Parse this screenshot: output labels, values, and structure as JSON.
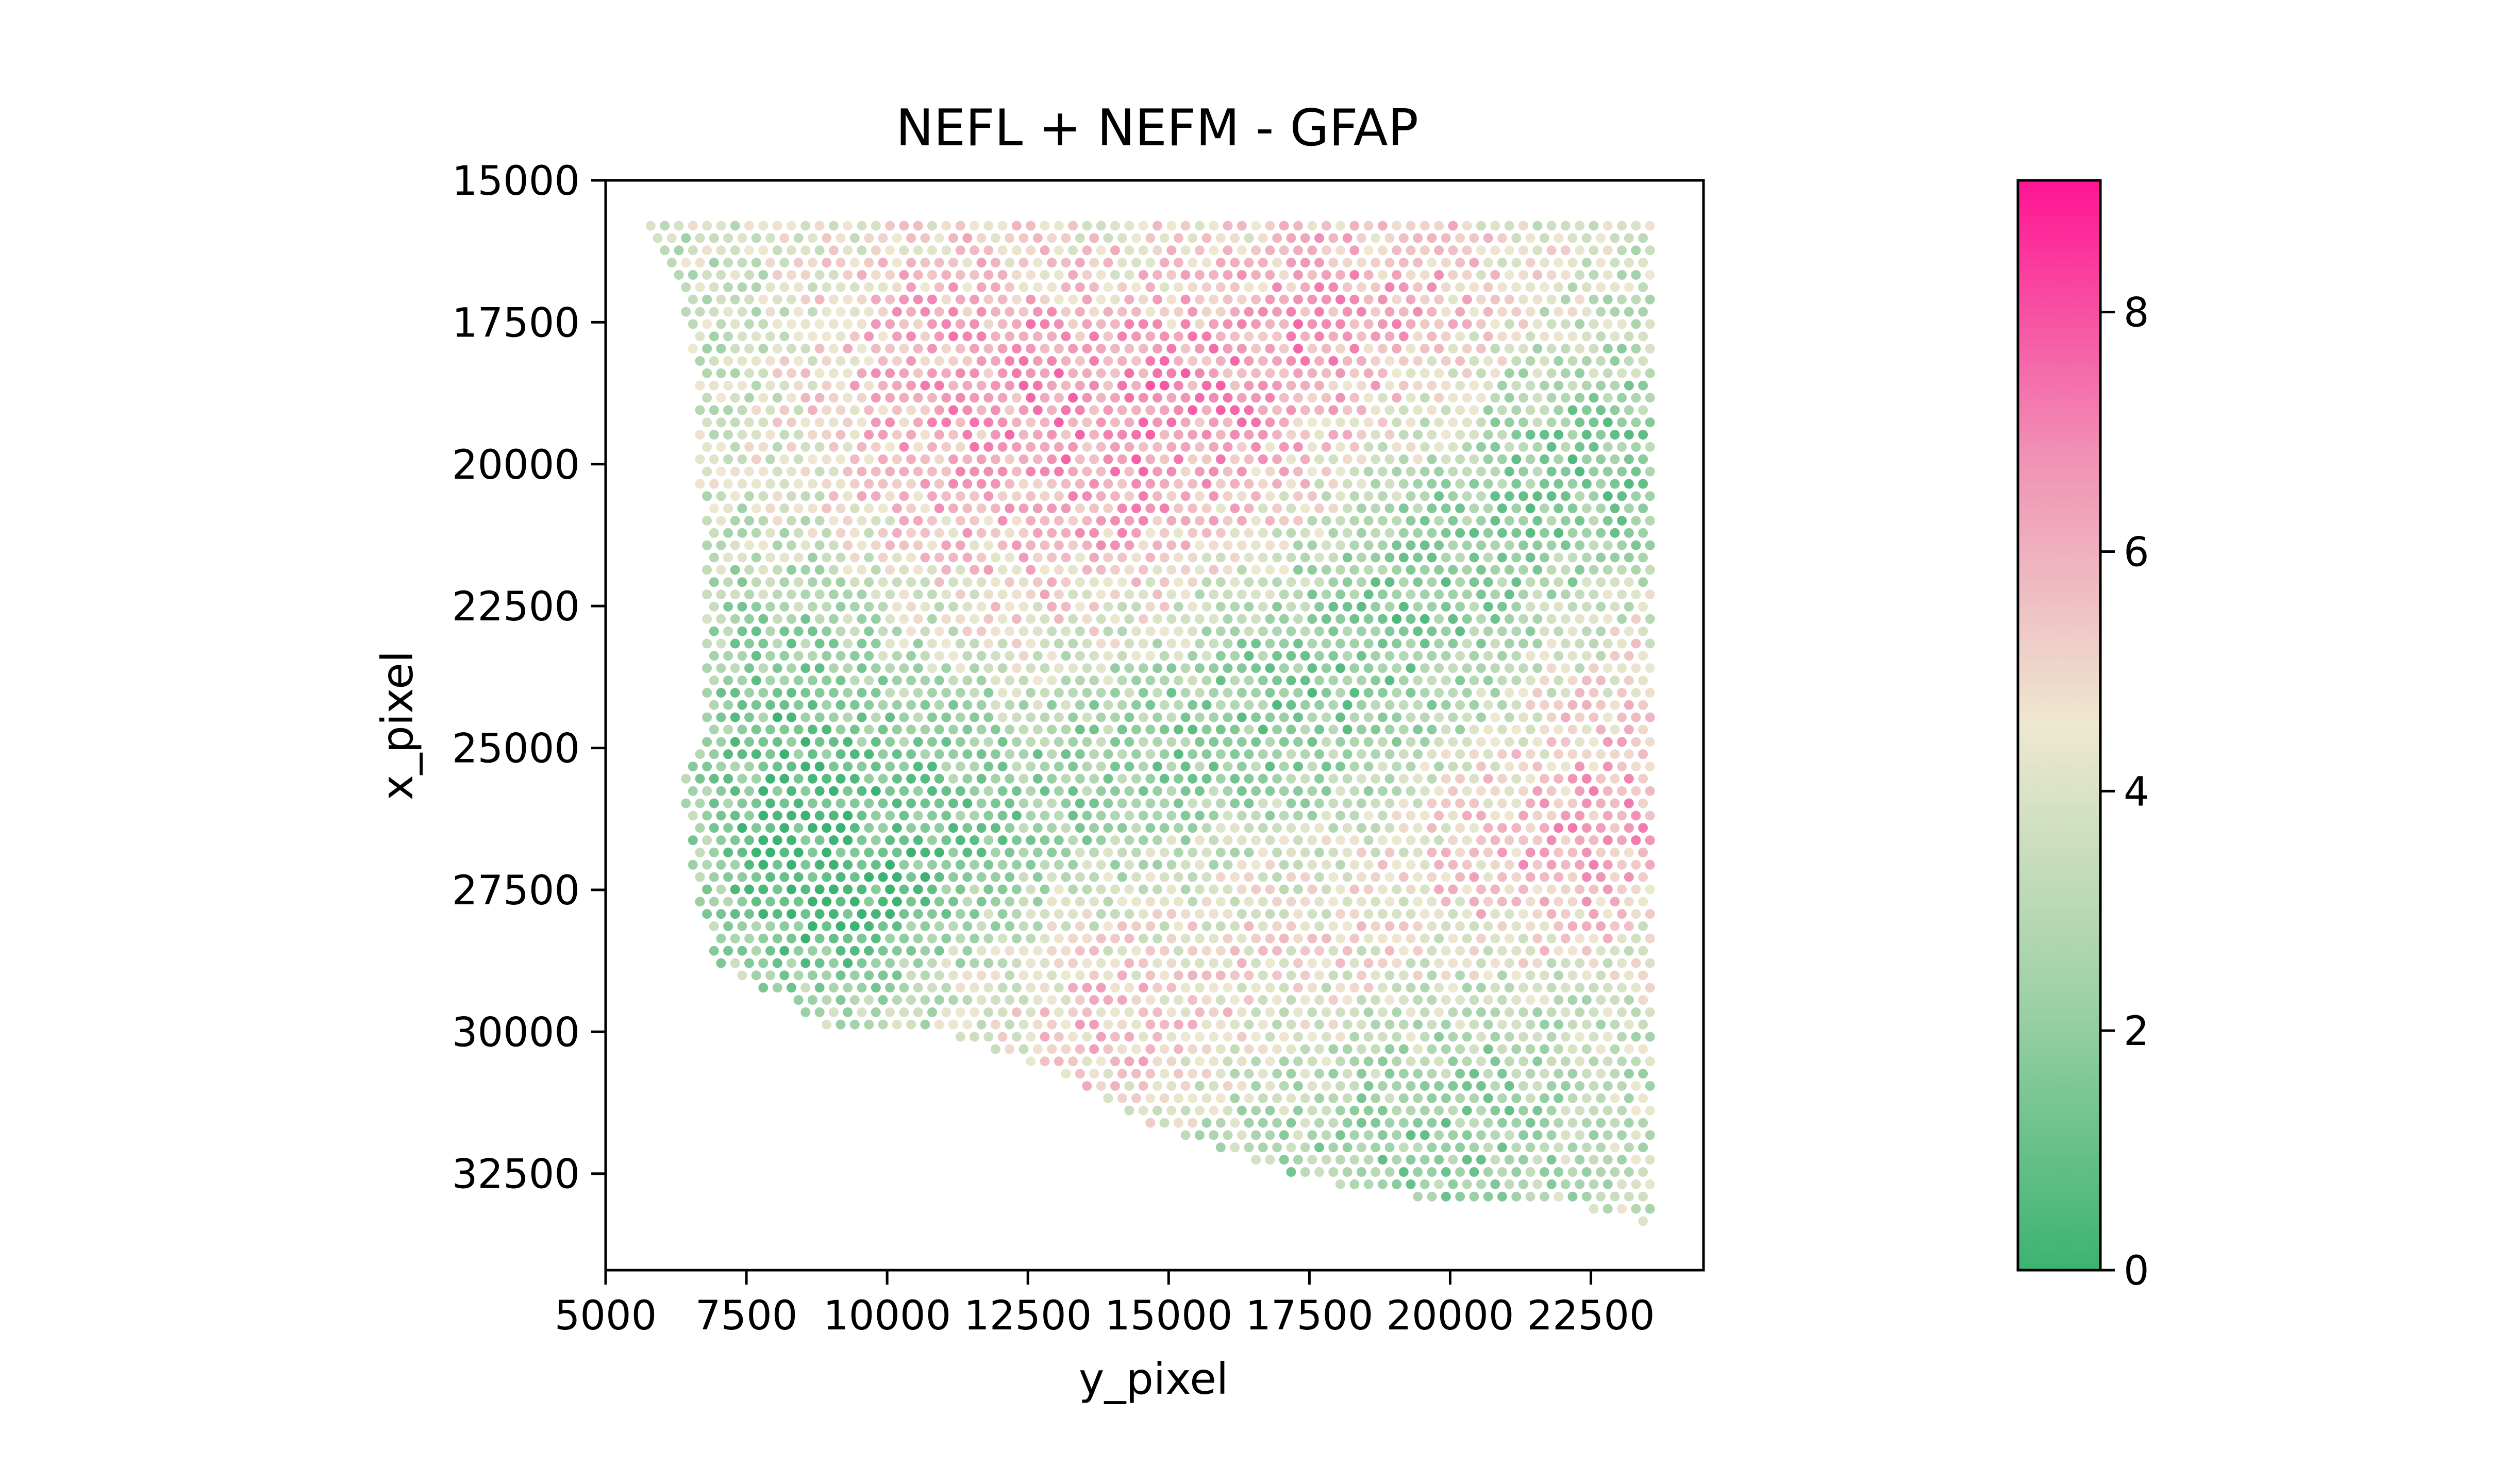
{
  "chart_data": {
    "type": "scatter",
    "title": "NEFL + NEFM - GFAP",
    "xlabel": "y_pixel",
    "ylabel": "x_pixel",
    "xlim": [
      5000,
      24500
    ],
    "ylim": [
      34200,
      15000
    ],
    "y_inverted": true,
    "x_ticks": [
      5000,
      7500,
      10000,
      12500,
      15000,
      17500,
      20000,
      22500
    ],
    "x_tick_labels": [
      "5000",
      "7500",
      "10000",
      "12500",
      "15000",
      "17500",
      "20000",
      "22500"
    ],
    "y_ticks": [
      15000,
      17500,
      20000,
      22500,
      25000,
      27500,
      30000,
      32500
    ],
    "y_tick_labels": [
      "15000",
      "17500",
      "20000",
      "22500",
      "25000",
      "27500",
      "30000",
      "32500"
    ],
    "grid": false,
    "legend": "none",
    "spot_layout": "hexagonal grid of Visium spots",
    "spot_spacing_x": 250,
    "spot_spacing_y": 433,
    "tissue_extent": {
      "x_min": 5800,
      "x_max": 23600,
      "y_min": 15800,
      "y_max": 33400
    },
    "tissue_boundary": {
      "left_edge": [
        [
          15800,
          5800
        ],
        [
          16600,
          6200
        ],
        [
          18500,
          6600
        ],
        [
          21000,
          6700
        ],
        [
          24800,
          6700
        ],
        [
          25300,
          6300
        ],
        [
          27800,
          6600
        ],
        [
          28800,
          7000
        ],
        [
          29500,
          8300
        ],
        [
          30000,
          9000
        ]
      ],
      "bottom_edge": [
        [
          9000,
          30000
        ],
        [
          11000,
          30000
        ],
        [
          13000,
          30700
        ],
        [
          15000,
          31800
        ],
        [
          16500,
          32300
        ],
        [
          18000,
          32700
        ],
        [
          20000,
          33000
        ],
        [
          22000,
          33000
        ],
        [
          23600,
          33400
        ]
      ]
    },
    "value_field": [
      {
        "x": 11000,
        "y": 18500,
        "value": 6.0,
        "extent": 3000
      },
      {
        "x": 12300,
        "y": 21800,
        "value": 6.3,
        "extent": 3200
      },
      {
        "x": 15200,
        "y": 20500,
        "value": 6.5,
        "extent": 2800
      },
      {
        "x": 18800,
        "y": 18000,
        "value": 6.6,
        "extent": 3200
      },
      {
        "x": 14500,
        "y": 29000,
        "value": 6.4,
        "extent": 2800
      },
      {
        "x": 21600,
        "y": 26200,
        "value": 6.9,
        "extent": 2600
      },
      {
        "x": 18000,
        "y": 27800,
        "value": 5.9,
        "extent": 3000
      },
      {
        "x": 23000,
        "y": 23500,
        "value": 5.8,
        "extent": 2400
      },
      {
        "x": 9200,
        "y": 24000,
        "value": 1.3,
        "extent": 3200
      },
      {
        "x": 9000,
        "y": 27300,
        "value": 0.7,
        "extent": 2200
      },
      {
        "x": 13800,
        "y": 25800,
        "value": 0.9,
        "extent": 3000
      },
      {
        "x": 16800,
        "y": 24500,
        "value": 0.9,
        "extent": 3000
      },
      {
        "x": 19500,
        "y": 23000,
        "value": 1.0,
        "extent": 3000
      },
      {
        "x": 21800,
        "y": 20500,
        "value": 0.7,
        "extent": 3000
      },
      {
        "x": 20000,
        "y": 30800,
        "value": 1.8,
        "extent": 3000
      },
      {
        "x": 17000,
        "y": 31800,
        "value": 2.3,
        "extent": 2400
      },
      {
        "x": 7000,
        "y": 17500,
        "value": 3.2,
        "extent": 2400
      }
    ],
    "value_baseline": 3.8,
    "value_range": [
      0,
      9.1
    ],
    "colorbar": {
      "vmin": 0,
      "vmax": 9.1,
      "ticks": [
        0,
        2,
        4,
        6,
        8
      ],
      "tick_labels": [
        "0",
        "2",
        "4",
        "6",
        "8"
      ],
      "colors": [
        "#3cb371",
        "#9fd1a7",
        "#eee8d0",
        "#f090b4",
        "#ff1493"
      ]
    }
  }
}
